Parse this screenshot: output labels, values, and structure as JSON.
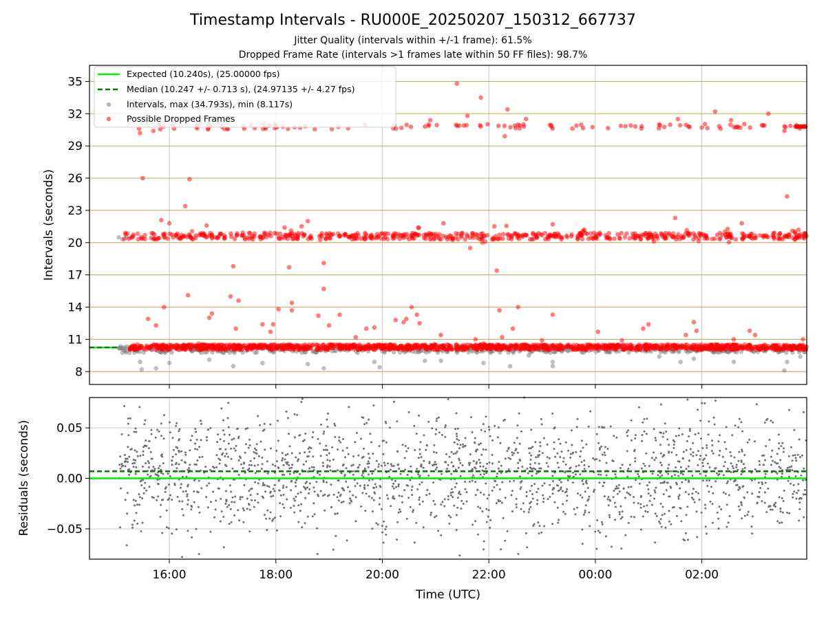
{
  "title": "Timestamp Intervals - RU000E_20250207_150312_667737",
  "subtitle_1": "Jitter Quality (intervals within +/-1 frame): 61.5%",
  "subtitle_2": "Dropped Frame Rate (intervals >1 frames late within 50 FF files): 98.7%",
  "colors": {
    "expected": "#00ee00",
    "median": "#007700",
    "intervals": "#808080",
    "dropped": "#ff0000",
    "grid_top": "#c8b46e",
    "grid": "#c8c8c8"
  },
  "chart_data": [
    {
      "type": "scatter",
      "panel": "intervals",
      "ylabel": "Intervals (seconds)",
      "ylim": [
        6.8,
        36.5
      ],
      "yticks": [
        8,
        11,
        14,
        17,
        20,
        23,
        26,
        29,
        32,
        35
      ],
      "xlim_hours": [
        14.5,
        27.97
      ],
      "legend_position": "upper-left",
      "legend": [
        "Expected (10.240s), (25.00000 fps)",
        "Median (10.247 +/- 0.713 s), (24.97135 +/- 4.27 fps)",
        "Intervals, max (34.793s), min (8.117s)",
        "Possible Dropped Frames"
      ],
      "expected_interval": 10.24,
      "median_interval": 10.247,
      "data_start_hour": 15.05,
      "max_interval": 34.793,
      "min_interval": 8.117,
      "bands": [
        {
          "series": "dropped",
          "center": 10.27,
          "spread": 0.25
        },
        {
          "series": "dropped",
          "center": 20.6,
          "spread": 0.3
        },
        {
          "series": "dropped",
          "center": 30.8,
          "spread": 0.25
        }
      ],
      "outliers_dropped": [
        [
          15.45,
          30.2
        ],
        [
          15.5,
          26.0
        ],
        [
          15.6,
          12.9
        ],
        [
          15.75,
          12.3
        ],
        [
          15.85,
          22.1
        ],
        [
          15.9,
          14.0
        ],
        [
          15.7,
          30.4
        ],
        [
          16.0,
          21.8
        ],
        [
          16.3,
          23.4
        ],
        [
          16.35,
          15.1
        ],
        [
          16.38,
          25.9
        ],
        [
          16.55,
          10.6
        ],
        [
          16.75,
          13.0
        ],
        [
          16.8,
          13.4
        ],
        [
          16.7,
          21.6
        ],
        [
          17.15,
          15.0
        ],
        [
          17.2,
          17.8
        ],
        [
          17.3,
          14.6
        ],
        [
          17.25,
          12.0
        ],
        [
          17.5,
          20.9
        ],
        [
          17.75,
          12.4
        ],
        [
          17.9,
          11.7
        ],
        [
          17.95,
          12.4
        ],
        [
          18.05,
          13.8
        ],
        [
          18.25,
          17.7
        ],
        [
          18.3,
          13.7
        ],
        [
          18.3,
          14.4
        ],
        [
          18.6,
          22.0
        ],
        [
          18.8,
          13.2
        ],
        [
          18.9,
          18.1
        ],
        [
          18.9,
          15.7
        ],
        [
          19.0,
          12.3
        ],
        [
          19.2,
          13.3
        ],
        [
          19.5,
          11.2
        ],
        [
          19.7,
          12.0
        ],
        [
          19.85,
          12.1
        ],
        [
          20.25,
          12.8
        ],
        [
          20.4,
          12.6
        ],
        [
          20.45,
          12.9
        ],
        [
          20.55,
          14.0
        ],
        [
          20.65,
          13.3
        ],
        [
          20.7,
          12.5
        ],
        [
          20.8,
          30.8
        ],
        [
          20.9,
          31.4
        ],
        [
          21.1,
          11.4
        ],
        [
          21.15,
          21.8
        ],
        [
          21.4,
          34.8
        ],
        [
          21.6,
          31.8
        ],
        [
          21.65,
          19.5
        ],
        [
          21.75,
          11.0
        ],
        [
          21.85,
          33.5
        ],
        [
          21.9,
          10.6
        ],
        [
          22.15,
          17.4
        ],
        [
          22.2,
          13.7
        ],
        [
          22.25,
          11.2
        ],
        [
          22.3,
          29.9
        ],
        [
          22.35,
          32.4
        ],
        [
          22.45,
          12.0
        ],
        [
          22.55,
          14.0
        ],
        [
          22.65,
          31.0
        ],
        [
          22.7,
          31.5
        ],
        [
          23.0,
          10.9
        ],
        [
          23.2,
          13.3
        ],
        [
          23.2,
          21.7
        ],
        [
          24.05,
          11.7
        ],
        [
          24.5,
          10.9
        ],
        [
          24.9,
          12.0
        ],
        [
          25.0,
          12.4
        ],
        [
          25.2,
          31.0
        ],
        [
          25.5,
          22.3
        ],
        [
          25.55,
          31.5
        ],
        [
          25.7,
          11.4
        ],
        [
          25.75,
          30.8
        ],
        [
          25.85,
          12.6
        ],
        [
          25.9,
          11.8
        ],
        [
          26.0,
          30.7
        ],
        [
          26.25,
          32.2
        ],
        [
          26.55,
          31.4
        ],
        [
          26.6,
          11.0
        ],
        [
          26.75,
          21.8
        ],
        [
          26.9,
          11.8
        ],
        [
          27.0,
          11.4
        ],
        [
          27.25,
          32.0
        ],
        [
          27.55,
          30.4
        ],
        [
          27.6,
          24.3
        ],
        [
          27.75,
          20.9
        ],
        [
          27.9,
          11.0
        ],
        [
          27.7,
          21.1
        ]
      ],
      "outliers_intervals": [
        [
          15.05,
          20.5
        ],
        [
          15.12,
          20.3
        ],
        [
          15.2,
          20.5
        ],
        [
          15.45,
          8.9
        ],
        [
          15.48,
          8.2
        ],
        [
          15.75,
          8.3
        ],
        [
          16.0,
          8.8
        ],
        [
          16.75,
          9.1
        ],
        [
          17.2,
          8.5
        ],
        [
          17.75,
          8.8
        ],
        [
          18.6,
          8.7
        ],
        [
          18.9,
          8.3
        ],
        [
          19.85,
          8.9
        ],
        [
          19.95,
          8.4
        ],
        [
          20.8,
          9.0
        ],
        [
          21.1,
          9.0
        ],
        [
          21.9,
          8.8
        ],
        [
          22.4,
          8.5
        ],
        [
          22.75,
          9.5
        ],
        [
          23.2,
          8.9
        ],
        [
          23.2,
          8.5
        ],
        [
          25.2,
          9.4
        ],
        [
          25.6,
          8.9
        ],
        [
          25.85,
          9.2
        ],
        [
          26.6,
          8.9
        ],
        [
          27.55,
          8.1
        ],
        [
          27.6,
          8.9
        ],
        [
          27.85,
          9.4
        ]
      ]
    },
    {
      "type": "scatter",
      "panel": "residuals",
      "ylabel": "Residuals (seconds)",
      "xlabel": "Time (UTC)",
      "ylim": [
        -0.08,
        0.08
      ],
      "yticks": [
        0.05,
        0.0,
        -0.05
      ],
      "ytick_labels": [
        "0.05",
        "0.00",
        "−0.05"
      ],
      "xlim_hours": [
        14.5,
        27.97
      ],
      "xticks_hours": [
        16,
        18,
        20,
        22,
        24,
        26
      ],
      "xtick_labels": [
        "16:00",
        "18:00",
        "20:00",
        "22:00",
        "00:00",
        "02:00"
      ],
      "expected_residual": 0.0,
      "median_residual": 0.007,
      "residual_std": 0.03,
      "point_count": 1900
    }
  ]
}
